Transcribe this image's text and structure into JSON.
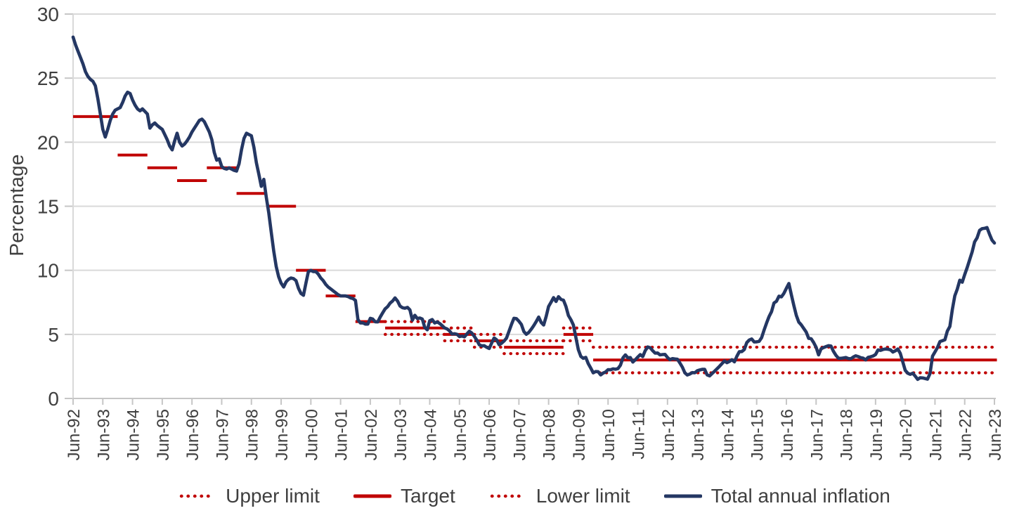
{
  "chart_data": {
    "type": "line",
    "title": "",
    "xlabel": "",
    "ylabel": "Percentage",
    "ylim": [
      0,
      30
    ],
    "yticks": [
      0,
      5,
      10,
      15,
      20,
      25,
      30
    ],
    "grid": "horizontal",
    "legend_position": "bottom",
    "x_unit": "month",
    "x_points": 373,
    "x_start_label": "Jun-92",
    "x_end_label": "Jun-23",
    "x_tick_every_months": 12,
    "x_tick_labels": [
      "Jun-92",
      "Jun-93",
      "Jun-94",
      "Jun-95",
      "Jun-96",
      "Jun-97",
      "Jun-98",
      "Jun-99",
      "Jun-00",
      "Jun-01",
      "Jun-02",
      "Jun-03",
      "Jun-04",
      "Jun-05",
      "Jun-06",
      "Jun-07",
      "Jun-08",
      "Jun-09",
      "Jun-10",
      "Jun-11",
      "Jun-12",
      "Jun-13",
      "Jun-14",
      "Jun-15",
      "Jun-16",
      "Jun-17",
      "Jun-18",
      "Jun-19",
      "Jun-20",
      "Jun-21",
      "Jun-22",
      "Jun-23"
    ],
    "series": [
      {
        "name": "Total annual inflation",
        "color": "#243763",
        "values": [
          28.2,
          27.6,
          27.1,
          26.6,
          26.1,
          25.5,
          25.13,
          24.9,
          24.75,
          24.4,
          23.4,
          22.2,
          21.0,
          20.4,
          21.0,
          21.7,
          22.2,
          22.5,
          22.6,
          22.7,
          23.1,
          23.6,
          23.9,
          23.8,
          23.3,
          22.9,
          22.6,
          22.45,
          22.6,
          22.4,
          22.2,
          21.1,
          21.35,
          21.5,
          21.3,
          21.15,
          21.0,
          20.6,
          20.2,
          19.7,
          19.4,
          20.1,
          20.7,
          20.0,
          19.7,
          19.85,
          20.1,
          20.4,
          20.8,
          21.1,
          21.4,
          21.7,
          21.8,
          21.6,
          21.2,
          20.8,
          20.2,
          19.2,
          18.6,
          18.7,
          18.1,
          17.95,
          17.9,
          18.0,
          17.9,
          17.8,
          17.75,
          18.3,
          19.4,
          20.3,
          20.7,
          20.6,
          20.5,
          19.6,
          18.4,
          17.5,
          16.55,
          17.1,
          15.7,
          14.5,
          13.0,
          11.5,
          10.3,
          9.5,
          9.0,
          8.7,
          9.1,
          9.3,
          9.4,
          9.35,
          9.2,
          8.6,
          8.2,
          8.05,
          9.0,
          9.9,
          10.0,
          9.9,
          9.9,
          9.7,
          9.4,
          9.2,
          8.9,
          8.7,
          8.55,
          8.4,
          8.25,
          8.1,
          8.0,
          8.0,
          8.0,
          7.95,
          7.85,
          7.8,
          7.65,
          6.16,
          5.89,
          5.9,
          5.8,
          5.8,
          6.25,
          6.2,
          5.98,
          5.97,
          6.35,
          6.68,
          6.99,
          7.17,
          7.44,
          7.6,
          7.85,
          7.6,
          7.21,
          7.08,
          7.04,
          7.11,
          6.91,
          6.11,
          6.49,
          6.23,
          6.28,
          6.2,
          5.54,
          5.36,
          6.07,
          6.16,
          5.89,
          5.97,
          5.85,
          5.69,
          5.5,
          5.43,
          5.27,
          5.03,
          5.05,
          5.01,
          4.83,
          4.87,
          4.81,
          5.03,
          5.25,
          5.1,
          4.85,
          4.56,
          4.19,
          4.11,
          4.12,
          3.99,
          3.9,
          4.32,
          4.72,
          4.58,
          4.19,
          4.31,
          4.48,
          4.71,
          5.25,
          5.78,
          6.26,
          6.23,
          6.03,
          5.77,
          5.22,
          5.01,
          5.16,
          5.41,
          5.69,
          6.0,
          6.35,
          5.93,
          5.73,
          6.39,
          7.18,
          7.52,
          7.87,
          7.57,
          7.94,
          7.73,
          7.67,
          7.18,
          6.47,
          6.14,
          5.73,
          4.77,
          3.81,
          3.28,
          3.13,
          3.21,
          2.72,
          2.37,
          2.0,
          2.1,
          2.09,
          1.84,
          1.98,
          2.07,
          2.25,
          2.24,
          2.31,
          2.28,
          2.33,
          2.59,
          3.17,
          3.4,
          3.17,
          3.19,
          2.84,
          3.02,
          3.23,
          3.42,
          3.27,
          3.73,
          4.02,
          3.96,
          3.73,
          3.54,
          3.55,
          3.4,
          3.43,
          3.44,
          3.2,
          3.03,
          3.11,
          3.08,
          3.06,
          2.77,
          2.44,
          2.0,
          1.83,
          1.91,
          2.02,
          2.0,
          2.16,
          2.22,
          2.27,
          2.27,
          1.84,
          1.76,
          1.94,
          2.13,
          2.32,
          2.51,
          2.72,
          2.93,
          2.79,
          2.89,
          3.02,
          2.86,
          3.29,
          3.65,
          3.66,
          3.82,
          4.36,
          4.56,
          4.64,
          4.41,
          4.42,
          4.46,
          4.74,
          5.35,
          5.89,
          6.39,
          6.77,
          7.45,
          7.59,
          7.98,
          7.93,
          8.2,
          8.6,
          8.97,
          8.1,
          7.27,
          6.48,
          5.96,
          5.75,
          5.47,
          5.18,
          4.69,
          4.66,
          4.37,
          3.99,
          3.4,
          3.87,
          3.97,
          4.05,
          4.12,
          4.09,
          3.68,
          3.37,
          3.14,
          3.13,
          3.16,
          3.2,
          3.12,
          3.1,
          3.23,
          3.33,
          3.27,
          3.18,
          3.15,
          3.01,
          3.21,
          3.25,
          3.31,
          3.43,
          3.79,
          3.75,
          3.82,
          3.86,
          3.84,
          3.8,
          3.62,
          3.72,
          3.86,
          3.51,
          2.85,
          2.19,
          1.97,
          1.88,
          1.97,
          1.75,
          1.49,
          1.61,
          1.6,
          1.56,
          1.51,
          1.95,
          3.3,
          3.63,
          3.97,
          4.44,
          4.51,
          4.58,
          5.26,
          5.62,
          6.94,
          8.01,
          8.53,
          9.23,
          9.07,
          9.67,
          10.21,
          10.84,
          11.44,
          12.22,
          12.53,
          13.12,
          13.25,
          13.28,
          13.34,
          12.82,
          12.36,
          12.13
        ]
      }
    ],
    "target_series": {
      "color": "#c00000",
      "segments": [
        {
          "from": 0,
          "to": 18,
          "target": 22
        },
        {
          "from": 18,
          "to": 30,
          "target": 19
        },
        {
          "from": 30,
          "to": 42,
          "target": 18
        },
        {
          "from": 42,
          "to": 54,
          "target": 17
        },
        {
          "from": 54,
          "to": 66,
          "target": 18
        },
        {
          "from": 66,
          "to": 78,
          "target": 16
        },
        {
          "from": 78,
          "to": 90,
          "target": 15
        },
        {
          "from": 90,
          "to": 102,
          "target": 10
        },
        {
          "from": 102,
          "to": 114,
          "target": 8
        },
        {
          "from": 114,
          "to": 126,
          "target": 6
        },
        {
          "from": 126,
          "to": 150,
          "target": 5.5,
          "upper": 6,
          "lower": 5
        },
        {
          "from": 150,
          "to": 162,
          "target": 5,
          "upper": 5.5,
          "lower": 4.5
        },
        {
          "from": 162,
          "to": 174,
          "target": 4.5,
          "upper": 5,
          "lower": 4
        },
        {
          "from": 174,
          "to": 198,
          "target": 4,
          "upper": 4.5,
          "lower": 3.5
        },
        {
          "from": 198,
          "to": 210,
          "target": 5,
          "upper": 5.5,
          "lower": 4.5
        },
        {
          "from": 210,
          "to": 373,
          "target": 3,
          "upper": 4,
          "lower": 2
        }
      ]
    },
    "legend": [
      {
        "label": "Upper limit",
        "style": "dotted",
        "color": "#c00000"
      },
      {
        "label": "Target",
        "style": "solid",
        "color": "#c00000"
      },
      {
        "label": "Lower limit",
        "style": "dotted",
        "color": "#c00000"
      },
      {
        "label": "Total annual inflation",
        "style": "solid",
        "color": "#243763"
      }
    ]
  },
  "colors": {
    "background": "#ffffff",
    "gridline": "#d9d9d9",
    "axis": "#c6c6c6",
    "tick_text": "#3f3f3f",
    "target_red": "#c00000",
    "inflation_navy": "#243763"
  }
}
